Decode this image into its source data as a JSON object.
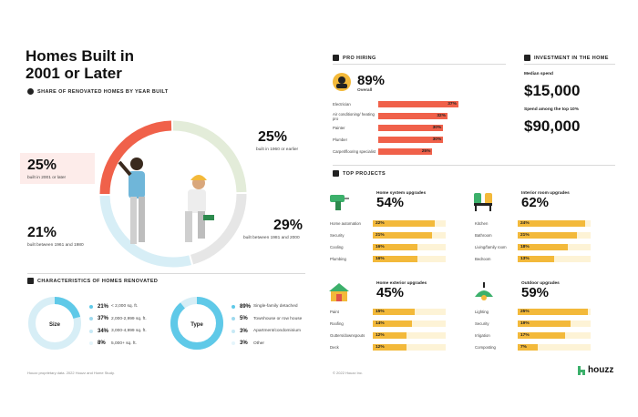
{
  "title": {
    "line1": "Homes Built in",
    "line2": "2001 or Later"
  },
  "share_section": {
    "header": "SHARE OF RENOVATED HOMES BY YEAR BUILT",
    "callouts": [
      {
        "pct": "25%",
        "label": "built in 1960 or earlier"
      },
      {
        "pct": "25%",
        "label": "built in 2001 or later"
      },
      {
        "pct": "29%",
        "label": "built between 1981 and 2000"
      },
      {
        "pct": "21%",
        "label": "built between 1961 and 1980"
      }
    ]
  },
  "characteristics": {
    "header": "CHARACTERISTICS OF HOMES RENOVATED",
    "size": {
      "center_label": "Size",
      "rows": [
        {
          "pct": "21%",
          "label": "< 2,000 sq. ft."
        },
        {
          "pct": "37%",
          "label": "2,000-2,999 sq. ft."
        },
        {
          "pct": "34%",
          "label": "3,000-4,999 sq. ft."
        },
        {
          "pct": "8%",
          "label": "5,000+ sq. ft."
        }
      ]
    },
    "type": {
      "center_label": "Type",
      "rows": [
        {
          "pct": "89%",
          "label": "Single-family detached"
        },
        {
          "pct": "5%",
          "label": "Townhouse or row house"
        },
        {
          "pct": "3%",
          "label": "Apartment/condominium"
        },
        {
          "pct": "3%",
          "label": "Other"
        }
      ]
    }
  },
  "pro_hiring": {
    "header": "PRO HIRING",
    "overall_pct": "89%",
    "overall_label": "Overall",
    "rows": [
      {
        "label": "Electrician",
        "value": 37,
        "text": "37%"
      },
      {
        "label": "Air conditioning/ heating pro",
        "value": 32,
        "text": "32%"
      },
      {
        "label": "Painter",
        "value": 30,
        "text": "30%"
      },
      {
        "label": "Plumber",
        "value": 30,
        "text": "30%"
      },
      {
        "label": "Carpet/flooring specialist",
        "value": 25,
        "text": "25%"
      }
    ]
  },
  "investment": {
    "header": "INVESTMENT IN THE HOME",
    "median_label": "Median spend",
    "median_value": "$15,000",
    "top_label": "Spend among the top 10%",
    "top_value": "$90,000"
  },
  "top_projects": {
    "header": "TOP PROJECTS",
    "groups": [
      {
        "title": "Home system upgrades",
        "pct": "54%",
        "rows": [
          {
            "label": "Home automation",
            "value": 22,
            "text": "22%"
          },
          {
            "label": "Security",
            "value": 21,
            "text": "21%"
          },
          {
            "label": "Cooling",
            "value": 16,
            "text": "16%"
          },
          {
            "label": "Plumbing",
            "value": 16,
            "text": "16%"
          }
        ]
      },
      {
        "title": "Interior room upgrades",
        "pct": "62%",
        "rows": [
          {
            "label": "Kitchen",
            "value": 24,
            "text": "24%"
          },
          {
            "label": "Bathroom",
            "value": 21,
            "text": "21%"
          },
          {
            "label": "Living/family room",
            "value": 18,
            "text": "18%"
          },
          {
            "label": "Bedroom",
            "value": 13,
            "text": "13%"
          }
        ]
      },
      {
        "title": "Home exterior upgrades",
        "pct": "45%",
        "rows": [
          {
            "label": "Paint",
            "value": 15,
            "text": "15%"
          },
          {
            "label": "Roofing",
            "value": 14,
            "text": "14%"
          },
          {
            "label": "Gutters/downspouts",
            "value": 12,
            "text": "12%"
          },
          {
            "label": "Deck",
            "value": 12,
            "text": "12%"
          }
        ]
      },
      {
        "title": "Outdoor upgrades",
        "pct": "59%",
        "rows": [
          {
            "label": "Lighting",
            "value": 25,
            "text": "25%"
          },
          {
            "label": "Security",
            "value": 19,
            "text": "19%"
          },
          {
            "label": "Irrigation",
            "value": 17,
            "text": "17%"
          },
          {
            "label": "Composting",
            "value": 7,
            "text": "7%"
          }
        ]
      }
    ]
  },
  "footer": {
    "left": "Houzz proprietary data. 2022 Houzz and Home Study.",
    "mid": "© 2022 Houzz Inc.",
    "brand": "houzz"
  },
  "colors": {
    "red": "#f0614a",
    "green": "#e3ecd9",
    "gray": "#e6e6e6",
    "blue": "#d7eef6",
    "yellow": "#f3b93a",
    "cyan": "#5fc9e8"
  },
  "chart_data": [
    {
      "type": "pie",
      "title": "SHARE OF RENOVATED HOMES BY YEAR BUILT",
      "categories": [
        "built in 2001 or later",
        "built in 1960 or earlier",
        "built between 1961 and 1980",
        "built between 1981 and 2000"
      ],
      "values": [
        25,
        25,
        21,
        29
      ]
    },
    {
      "type": "bar",
      "title": "PRO HIRING",
      "categories": [
        "Electrician",
        "Air conditioning/ heating pro",
        "Painter",
        "Plumber",
        "Carpet/flooring specialist"
      ],
      "values": [
        37,
        32,
        30,
        30,
        25
      ]
    },
    {
      "type": "bar",
      "title": "Home system upgrades",
      "categories": [
        "Home automation",
        "Security",
        "Cooling",
        "Plumbing"
      ],
      "values": [
        22,
        21,
        16,
        16
      ]
    },
    {
      "type": "bar",
      "title": "Interior room upgrades",
      "categories": [
        "Kitchen",
        "Bathroom",
        "Living/family room",
        "Bedroom"
      ],
      "values": [
        24,
        21,
        18,
        13
      ]
    },
    {
      "type": "bar",
      "title": "Home exterior upgrades",
      "categories": [
        "Paint",
        "Roofing",
        "Gutters/downspouts",
        "Deck"
      ],
      "values": [
        15,
        14,
        12,
        12
      ]
    },
    {
      "type": "bar",
      "title": "Outdoor upgrades",
      "categories": [
        "Lighting",
        "Security",
        "Irrigation",
        "Composting"
      ],
      "values": [
        25,
        19,
        17,
        7
      ]
    }
  ]
}
